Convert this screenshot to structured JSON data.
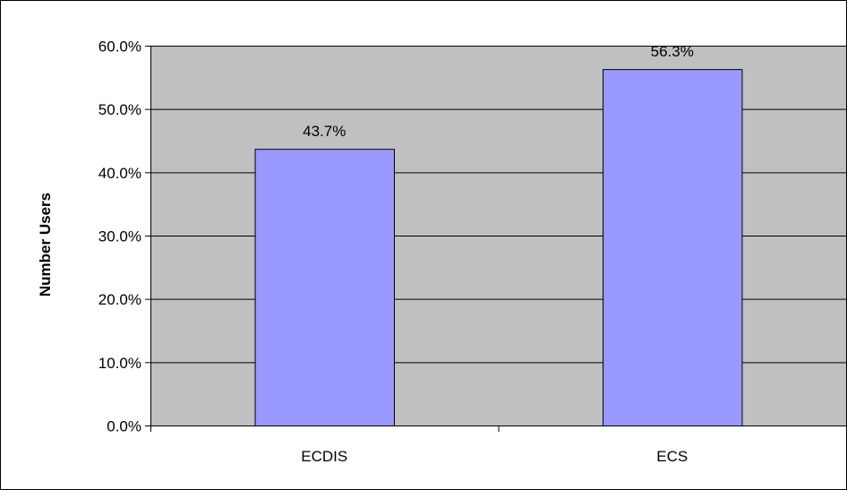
{
  "chart_data": {
    "type": "bar",
    "categories": [
      "ECDIS",
      "ECS"
    ],
    "values": [
      43.7,
      56.3
    ],
    "value_labels": [
      "43.7%",
      "56.3%"
    ],
    "ylabel": "Number Users",
    "ylim": [
      0,
      60
    ],
    "yticks": [
      0,
      10,
      20,
      30,
      40,
      50,
      60
    ],
    "ytick_labels": [
      "0.0%",
      "10.0%",
      "20.0%",
      "30.0%",
      "40.0%",
      "50.0%",
      "60.0%"
    ],
    "grid": true,
    "legend": "none",
    "colors": {
      "bar_fill": "#9999ff",
      "bar_stroke": "#000000",
      "plot_background": "#c0c0c0",
      "gridline": "#000000"
    }
  }
}
